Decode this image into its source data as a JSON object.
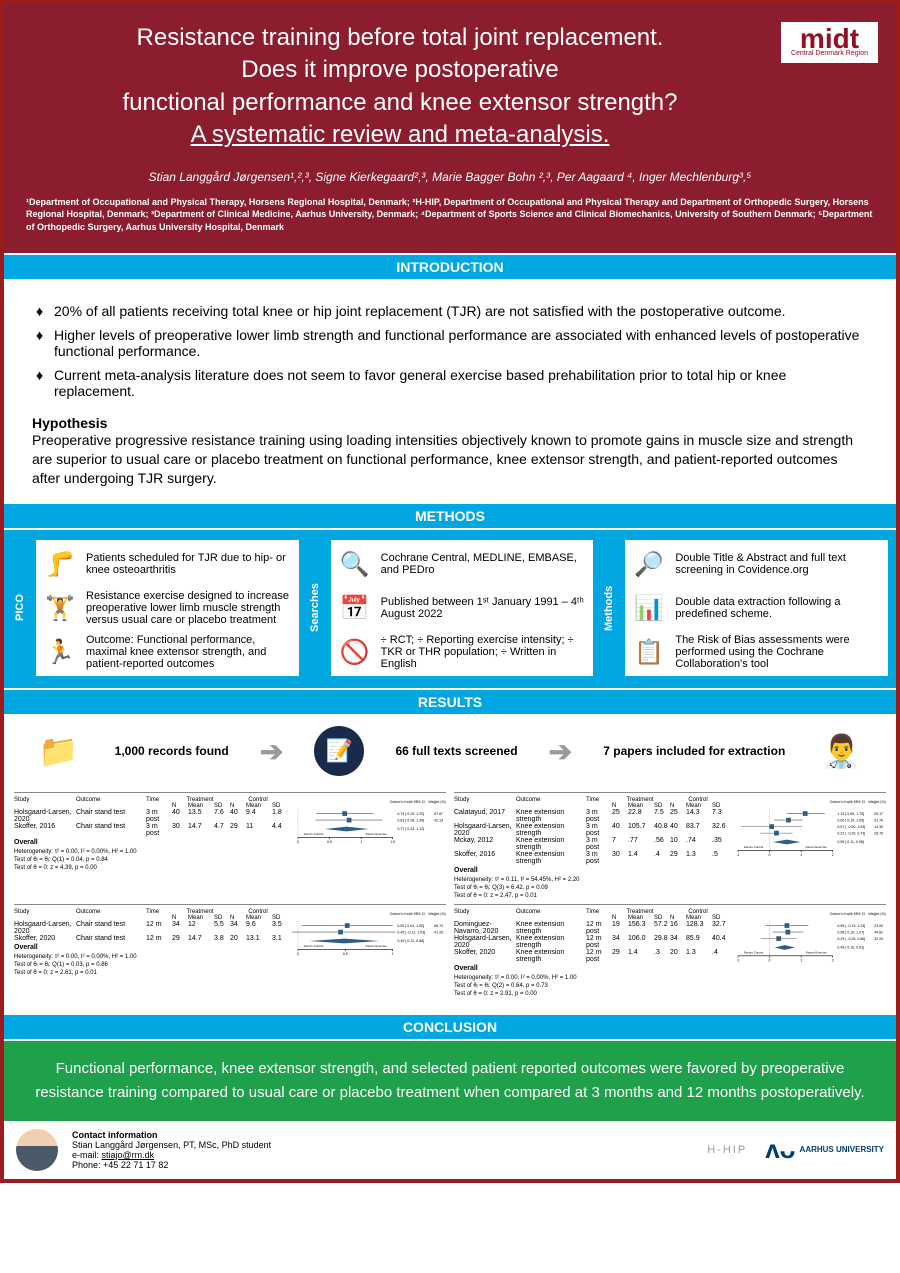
{
  "colors": {
    "header_bg": "#8c1d2e",
    "section_bg": "#00a7e1",
    "conclusion_bg": "#1fa04a",
    "border": "#9a1c1c",
    "logo_red": "#940e24",
    "au_blue": "#003d73"
  },
  "logo": {
    "main": "midt",
    "sub": "Central Denmark Region"
  },
  "title_line1": "Resistance training before total joint replacement.",
  "title_line2": "Does it improve postoperative",
  "title_line3": "functional performance and knee extensor strength?",
  "title_line4": " A systematic review and meta-analysis.",
  "authors": "Stian Langgård Jørgensen¹,²,³, Signe Kierkegaard²,³, Marie Bagger Bohn ²,³, Per Aagaard ⁴, Inger Mechlenburg³,⁵",
  "affiliations": "¹Department of Occupational and Physical Therapy, Horsens Regional Hospital, Denmark; ²H-HIP, Department of Occupational and Physical Therapy and Department of Orthopedic Surgery, Horsens Regional Hospital, Denmark; ³Department of Clinical Medicine, Aarhus University, Denmark; ⁴Department of Sports Science and Clinical Biomechanics, University of Southern Denmark; ⁵Department of Orthopedic Surgery, Aarhus University Hospital, Denmark",
  "section_labels": {
    "intro": "INTRODUCTION",
    "methods": "METHODS",
    "results": "RESULTS",
    "conclusion": "CONCLUSION"
  },
  "intro_bullets": [
    "20% of all patients receiving total knee or hip joint replacement (TJR) are not satisfied with the postoperative outcome.",
    "Higher levels of preoperative lower limb strength and functional performance are associated with enhanced levels of postoperative functional performance.",
    "Current meta-analysis literature does not seem to favor general exercise based prehabilitation prior to total hip or knee replacement."
  ],
  "hypothesis_label": "Hypothesis",
  "hypothesis": "Preoperative progressive resistance training using loading intensities objectively known to promote gains in muscle size and strength are superior to usual care or placebo treatment on functional performance, knee extensor strength, and patient-reported outcomes after undergoing TJR surgery.",
  "methods_side_labels": [
    "PICO",
    "Searches",
    "Methods"
  ],
  "methods_cols": [
    [
      {
        "icon": "🦵",
        "text": "Patients scheduled for TJR due to hip- or knee osteoarthritis"
      },
      {
        "icon": "🏋️",
        "text": "Resistance exercise designed to increase preoperative lower limb muscle strength versus usual care or placebo treatment"
      },
      {
        "icon": "🏃",
        "text": "Outcome: Functional performance, maximal knee extensor strength, and patient-reported outcomes"
      }
    ],
    [
      {
        "icon": "🔍",
        "text": "Cochrane Central, MEDLINE, EMBASE, and PEDro"
      },
      {
        "icon": "📅",
        "text": "Published between 1ˢᵗ January 1991 – 4ᵗʰ August 2022"
      },
      {
        "icon": "🚫",
        "text": "÷ RCT; ÷ Reporting exercise intensity; ÷ TKR or THR population; ÷ Written in English"
      }
    ],
    [
      {
        "icon": "🔎",
        "text": "Double Title & Abstract and full text screening in Covidence.org"
      },
      {
        "icon": "📊",
        "text": "Double data extraction following a predefined scheme."
      },
      {
        "icon": "📋",
        "text": "The Risk of Bias assessments were performed using the Cochrane Collaboration's tool"
      }
    ]
  ],
  "results_flow": {
    "step1": "1,000 records found",
    "step2": "66 full texts screened",
    "step3": "7 papers included for extraction"
  },
  "forest_common": {
    "col_study": "Study",
    "col_outcome": "Outcome",
    "col_time": "Time",
    "col_treatment": "Treatment",
    "col_control": "Control",
    "col_n": "N",
    "col_mean": "Mean",
    "col_sd": "SD",
    "col_cohen": "Cohen's d with 95% CI",
    "col_weight": "Weight (%)",
    "overall": "Overall",
    "fav_c": "Favors Control",
    "fav_e": "Favors Exercise",
    "marker_color": "#2e5c8a",
    "diamond_color": "#2e5c8a",
    "line_color": "#555"
  },
  "forest_plots": [
    {
      "rows": [
        {
          "study": "Holsgaard-Larsen, 2020",
          "outcome": "Chair stand test",
          "time": "3 m post",
          "tn": "40",
          "tm": "13.5",
          "tsd": "7.6",
          "cn": "40",
          "cm": "9.4",
          "csd": "1.8",
          "est": 0.74,
          "lo": 0.29,
          "hi": 1.2,
          "w": "57.87"
        },
        {
          "study": "Skoffer, 2016",
          "outcome": "Chair stand test",
          "time": "3 m post",
          "tn": "30",
          "tm": "14.7",
          "tsd": "4.7",
          "cn": "29",
          "cm": "11",
          "csd": "4.4",
          "est": 0.81,
          "lo": 0.28,
          "hi": 1.34,
          "w": "42.13"
        }
      ],
      "overall": {
        "est": 0.77,
        "lo": 0.43,
        "hi": 1.12
      },
      "het": "Heterogeneity: τ² = 0.00, I² = 0.00%, H² = 1.00",
      "tests": [
        "Test of θᵢ = θⱼ: Q(1) = 0.04, p = 0.84",
        "Test of θ = 0: z = 4.39, p = 0.00"
      ],
      "axis": {
        "min": 0,
        "max": 1.5,
        "ticks": [
          0,
          0.5,
          1,
          1.5
        ]
      }
    },
    {
      "rows": [
        {
          "study": "Calatayud, 2017",
          "outcome": "Knee extension strength",
          "time": "3 m post",
          "tn": "25",
          "tm": "22.8",
          "tsd": "7.5",
          "cn": "25",
          "cm": "14.3",
          "csd": "7.3",
          "est": 1.13,
          "lo": 0.55,
          "hi": 1.75,
          "w": "25.17"
        },
        {
          "study": "Holsgaard-Larsen, 2020",
          "outcome": "Knee extension strength",
          "time": "3 m post",
          "tn": "40",
          "tm": "105.7",
          "tsd": "40.8",
          "cn": "40",
          "cm": "83.7",
          "csd": "32.6",
          "est": 0.6,
          "lo": 0.15,
          "hi": 1.05,
          "w": "31.70"
        },
        {
          "study": "Mckay, 2012",
          "outcome": "Knee extension strength",
          "time": "3 m post",
          "tn": "7",
          "tm": ".77",
          "tsd": ".56",
          "cn": "10",
          "cm": ".74",
          "csd": ".35",
          "est": 0.07,
          "lo": -0.9,
          "hi": 1.03,
          "w": "14.35"
        },
        {
          "study": "Skoffer, 2016",
          "outcome": "Knee extension strength",
          "time": "3 m post",
          "tn": "30",
          "tm": "1.4",
          "tsd": ".4",
          "cn": "29",
          "cm": "1.3",
          "csd": ".5",
          "est": 0.22,
          "lo": -0.29,
          "hi": 0.73,
          "w": "28.78"
        }
      ],
      "overall": {
        "est": 0.55,
        "lo": 0.11,
        "hi": 0.98
      },
      "het": "Heterogeneity: τ² = 0.11, I² = 54.45%, H² = 2.20",
      "tests": [
        "Test of θᵢ = θⱼ: Q(3) = 6.42, p = 0.09",
        "Test of θ = 0: z = 2.47, p = 0.01"
      ],
      "axis": {
        "min": -1,
        "max": 2,
        "ticks": [
          -1,
          0,
          1,
          2
        ]
      }
    },
    {
      "rows": [
        {
          "study": "Holsgaard-Larsen, 2020",
          "outcome": "Chair stand test",
          "time": "12 m",
          "tn": "34",
          "tm": "12",
          "tsd": "5.5",
          "cn": "34",
          "cm": "9.6",
          "csd": "3.5",
          "est": 0.52,
          "lo": 0.04,
          "hi": 1.0,
          "w": "58.74"
        },
        {
          "study": "Skoffer, 2020",
          "outcome": "Chair stand test",
          "time": "12 m",
          "tn": "29",
          "tm": "14.7",
          "tsd": "3.8",
          "cn": "20",
          "cm": "13.1",
          "csd": "3.1",
          "est": 0.45,
          "lo": -0.12,
          "hi": 1.03,
          "w": "41.26"
        }
      ],
      "overall": {
        "est": 0.49,
        "lo": 0.12,
        "hi": 0.86
      },
      "het": "Heterogeneity: τ² = 0.00, I² = 0.00%, H² = 1.00",
      "tests": [
        "Test of θᵢ = θⱼ: Q(1) = 0.03, p = 0.86",
        "Test of θ = 0: z = 2.61, p = 0.01"
      ],
      "axis": {
        "min": 0,
        "max": 1,
        "ticks": [
          0,
          0.5,
          1
        ]
      }
    },
    {
      "rows": [
        {
          "study": "Dominguez-Navarro, 2020",
          "outcome": "Knee extension strength",
          "time": "12 m post",
          "tn": "19",
          "tm": "156.3",
          "tsd": "57.2",
          "cn": "16",
          "cm": "128.3",
          "csd": "32.7",
          "est": 0.55,
          "lo": -0.13,
          "hi": 1.23,
          "w": "23.00"
        },
        {
          "study": "Holsgaard-Larsen, 2020",
          "outcome": "Knee extension strength",
          "time": "12 m post",
          "tn": "34",
          "tm": "106.0",
          "tsd": "29.8",
          "cn": "34",
          "cm": "85.9",
          "csd": "40.4",
          "est": 0.58,
          "lo": 0.1,
          "hi": 1.07,
          "w": "44.81"
        },
        {
          "study": "Skoffer, 2020",
          "outcome": "Knee extension strength",
          "time": "12 m post",
          "tn": "29",
          "tm": "1.4",
          "tsd": ".3",
          "cn": "20",
          "cm": "1.3",
          "csd": ".4",
          "est": 0.29,
          "lo": -0.28,
          "hi": 0.86,
          "w": "32.20"
        }
      ],
      "overall": {
        "est": 0.48,
        "lo": 0.16,
        "hi": 0.81
      },
      "het": "Heterogeneity: τ² = 0.00, I² = 0.00%, H² = 1.00",
      "tests": [
        "Test of θᵢ = θⱼ: Q(2) = 0.64, p = 0.73",
        "Test of θ = 0: z = 2.91, p = 0.00"
      ],
      "axis": {
        "min": -1,
        "max": 2,
        "ticks": [
          -1,
          0,
          1,
          2
        ]
      }
    }
  ],
  "conclusion_text": "Functional performance, knee extensor strength, and selected patient reported outcomes were favored by preoperative resistance training compared to usual care or placebo treatment when compared at 3 months and 12 months postoperatively.",
  "contact": {
    "heading": "Contact information",
    "name": "Stian Langgård Jørgensen, PT, MSc, PhD student",
    "email_label": "e-mail:",
    "email": "stiajo@rm.dk",
    "phone_label": "Phone:",
    "phone": "+45 22 71 17 82"
  },
  "footer_logos": {
    "hhip": "H-HIP",
    "au": "AARHUS UNIVERSITY"
  }
}
